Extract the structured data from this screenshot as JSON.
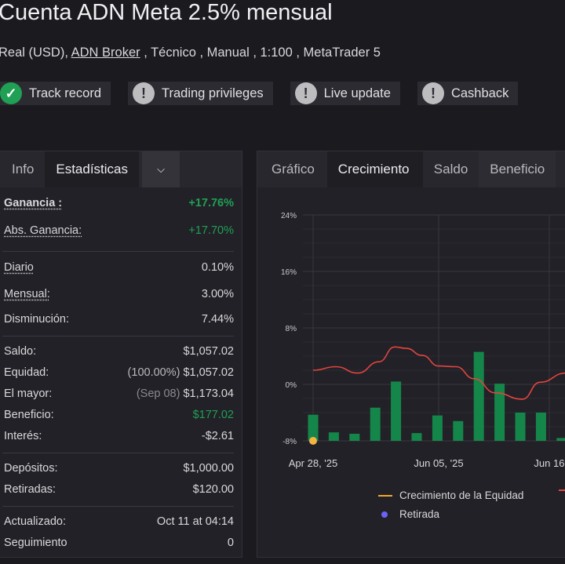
{
  "header": {
    "title": "Cuenta ADN Meta 2.5% mensual",
    "sub_prefix": "Real (USD), ",
    "broker": "ADN Broker",
    "sub_suffix": " , Técnico , Manual , 1:100 , MetaTrader 5"
  },
  "badges": [
    {
      "label": "Track record",
      "icon": "check-icon",
      "color": "#1fa055"
    },
    {
      "label": "Trading privileges",
      "icon": "exclamation-icon",
      "color": "#bdbdc0"
    },
    {
      "label": "Live update",
      "icon": "exclamation-icon",
      "color": "#bdbdc0"
    },
    {
      "label": "Cashback",
      "icon": "exclamation-icon",
      "color": "#bdbdc0"
    }
  ],
  "left_tabs": [
    "Info",
    "Estadísticas"
  ],
  "stats": {
    "ganancia": {
      "label": "Ganancia :",
      "value": "+17.76%"
    },
    "abs": {
      "label": "Abs. Ganancia:",
      "value": "+17.70%"
    },
    "diario": {
      "label": "Diario",
      "value": "0.10%"
    },
    "mensual": {
      "label": "Mensual:",
      "value": "3.00%"
    },
    "dism": {
      "label": "Disminución:",
      "value": "7.44%"
    },
    "saldo": {
      "label": "Saldo:",
      "value": "$1,057.02"
    },
    "equidad": {
      "label": "Equidad:",
      "note": "(100.00%)",
      "value": "$1,057.02"
    },
    "mayor": {
      "label": "El mayor:",
      "note": "(Sep 08)",
      "value": "$1,173.04"
    },
    "beneficio": {
      "label": "Beneficio:",
      "value": "$177.02"
    },
    "interes": {
      "label": "Interés:",
      "value": "-$2.61"
    },
    "depositos": {
      "label": "Depósitos:",
      "value": "$1,000.00"
    },
    "retiradas": {
      "label": "Retiradas:",
      "value": "$120.00"
    },
    "actualizado": {
      "label": "Actualizado:",
      "value": "Oct 11 at 04:14"
    },
    "seguimiento": {
      "label": "Seguimiento",
      "value": "0"
    }
  },
  "right_tabs": [
    "Gráfico",
    "Crecimiento",
    "Saldo",
    "Beneficio"
  ],
  "chart_data": {
    "type": "bar",
    "y_ticks": [
      "24%",
      "16%",
      "8%",
      "0%",
      "-8%"
    ],
    "ylim": [
      -8,
      24
    ],
    "x_labels": [
      {
        "label": "Apr 28, '25",
        "at": 0
      },
      {
        "label": "Jun 05, '25",
        "at": 6.06
      },
      {
        "label": "Jun 16",
        "at": 11.4
      }
    ],
    "bars": [
      -4.3,
      -6.8,
      -7.0,
      -3.3,
      0.4,
      -6.9,
      -4.4,
      -5.2,
      4.6,
      0.1,
      -4.0,
      -4.0,
      -7.6
    ],
    "line": [
      [
        0,
        2.0
      ],
      [
        1.1,
        2.5
      ],
      [
        2.16,
        1.6
      ],
      [
        3.18,
        3.2
      ],
      [
        3.94,
        5.3
      ],
      [
        4.5,
        5.1
      ],
      [
        5.27,
        4.1
      ],
      [
        6.06,
        2.6
      ],
      [
        6.9,
        2.5
      ],
      [
        7.77,
        0.8
      ],
      [
        8.8,
        -1.2
      ],
      [
        10.1,
        -2.1
      ],
      [
        10.95,
        0.3
      ],
      [
        12.2,
        1.6
      ]
    ],
    "withdrawal_points": [
      [
        0,
        -8
      ]
    ],
    "grid": true,
    "colors": {
      "bars": "#15864a",
      "line": "#e0453f",
      "equity": "#f0a830",
      "withdrawal": "#f3b443",
      "legend_dot": "#6b63f5"
    },
    "legend": [
      {
        "label": "Crecimiento de la Equidad"
      },
      {
        "label": "Retirada"
      }
    ]
  }
}
